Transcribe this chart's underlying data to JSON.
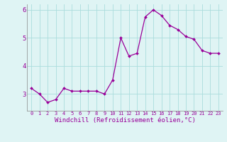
{
  "x": [
    0,
    1,
    2,
    3,
    4,
    5,
    6,
    7,
    8,
    9,
    10,
    11,
    12,
    13,
    14,
    15,
    16,
    17,
    18,
    19,
    20,
    21,
    22,
    23
  ],
  "y": [
    3.2,
    3.0,
    2.7,
    2.8,
    3.2,
    3.1,
    3.1,
    3.1,
    3.1,
    3.0,
    3.5,
    5.0,
    4.35,
    4.45,
    5.75,
    6.0,
    5.8,
    5.45,
    5.3,
    5.05,
    4.95,
    4.55,
    4.45,
    4.45
  ],
  "line_color": "#990099",
  "marker": "D",
  "marker_size": 2.0,
  "line_width": 0.9,
  "xlabel": "Windchill (Refroidissement éolien,°C)",
  "xlabel_fontsize": 6.5,
  "xlim": [
    -0.5,
    23.5
  ],
  "ylim": [
    2.4,
    6.2
  ],
  "yticks": [
    3,
    4,
    5,
    6
  ],
  "xtick_labels": [
    "0",
    "1",
    "2",
    "3",
    "4",
    "5",
    "6",
    "7",
    "8",
    "9",
    "10",
    "11",
    "12",
    "13",
    "14",
    "15",
    "16",
    "17",
    "18",
    "19",
    "20",
    "21",
    "22",
    "23"
  ],
  "xtick_fontsize": 5.0,
  "ytick_fontsize": 6.5,
  "grid_color": "#aadddd",
  "background_color": "#dff4f4",
  "label_color": "#990099",
  "spine_color": "#888888"
}
